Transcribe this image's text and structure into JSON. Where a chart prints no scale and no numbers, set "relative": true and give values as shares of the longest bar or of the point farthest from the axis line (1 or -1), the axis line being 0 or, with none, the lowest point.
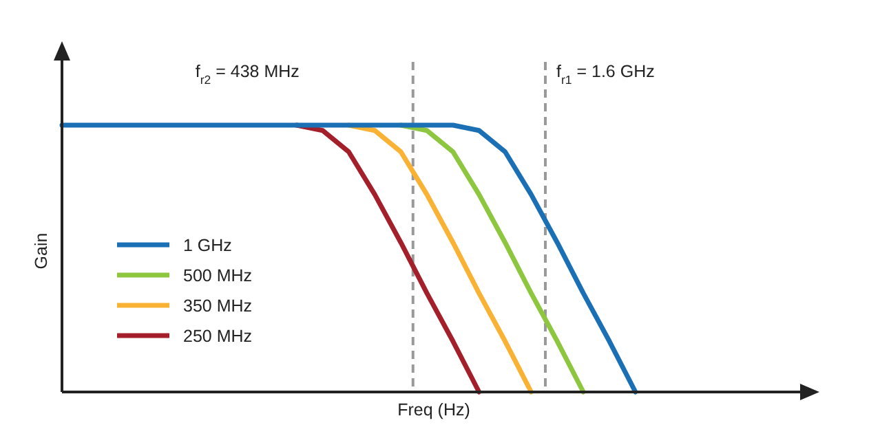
{
  "chart_data": {
    "type": "line",
    "relative": true,
    "xlabel": "Freq (Hz)",
    "ylabel": "Gain",
    "legend": "left",
    "line_style": "solid",
    "categories": [
      null,
      null,
      null,
      null,
      null,
      null,
      null,
      null,
      null,
      null,
      null,
      null,
      null,
      null,
      null,
      null,
      null,
      null,
      null,
      null,
      null,
      null,
      null,
      null,
      null,
      null,
      null,
      null,
      null
    ],
    "series": [
      {
        "name": "1 GHz",
        "color": "#1a6fb5",
        "values": [
          1,
          1,
          1,
          1,
          1,
          1,
          1,
          1,
          1,
          1,
          1,
          1,
          1,
          1,
          1,
          1,
          0.98,
          0.9,
          0.74,
          0.56,
          0.37,
          0.19,
          0,
          null,
          null,
          null,
          null,
          null,
          null
        ]
      },
      {
        "name": "500 MHz",
        "color": "#8dc63f",
        "values": [
          null,
          null,
          null,
          null,
          null,
          null,
          null,
          null,
          null,
          null,
          null,
          null,
          null,
          1,
          0.98,
          0.9,
          0.74,
          0.56,
          0.37,
          0.19,
          0,
          null,
          null,
          null,
          null,
          null,
          null,
          null,
          null
        ]
      },
      {
        "name": "350 MHz",
        "color": "#f9b233",
        "values": [
          null,
          null,
          null,
          null,
          null,
          null,
          null,
          null,
          null,
          null,
          null,
          1,
          0.98,
          0.9,
          0.74,
          0.56,
          0.37,
          0.19,
          0,
          null,
          null,
          null,
          null,
          null,
          null,
          null,
          null,
          null,
          null
        ]
      },
      {
        "name": "250 MHz",
        "color": "#a3202b",
        "values": [
          null,
          null,
          null,
          null,
          null,
          null,
          null,
          null,
          null,
          1,
          0.98,
          0.9,
          0.74,
          0.56,
          0.37,
          0.19,
          0,
          null,
          null,
          null,
          null,
          null,
          null,
          null,
          null,
          null,
          null,
          null,
          null
        ]
      }
    ],
    "annotations": [
      "f$_{r2}$ = 438 MHz",
      "f$_{r1}$ = 1.6 GHz"
    ]
  }
}
